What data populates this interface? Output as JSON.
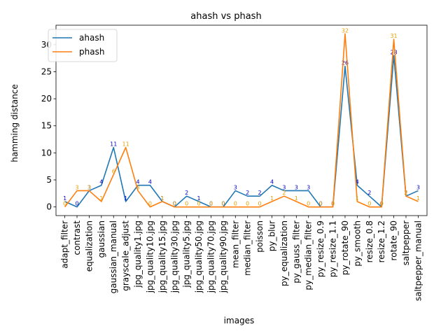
{
  "chart_data": {
    "type": "line",
    "title": "ahash vs phash",
    "xlabel": "images",
    "ylabel": "hamming distance",
    "ylim": [
      -1.6,
      33.6
    ],
    "yticks": [
      0,
      5,
      10,
      15,
      20,
      25,
      30
    ],
    "grid": false,
    "legend_position": "top-left",
    "categories": [
      "adapt_filter",
      "contrast",
      "equalization",
      "gaussian",
      "gaussian_manual",
      "grayscale_adjust",
      "jpg_quality1.jpg",
      "jpg_quality10.jpg",
      "jpg_quality15.jpg",
      "jpg_quality30.jpg",
      "jpg_quality5.jpg",
      "jpg_quality50.jpg",
      "jpg_quality70.jpg",
      "jpg_quality90.jpg",
      "mean_filter",
      "median_filter",
      "poisson",
      "py_blur",
      "py_equalization",
      "py_gauss_filter",
      "py_median_filter",
      "py_resize_0.9",
      "py_resize_1.1",
      "py_rotate_90",
      "py_smooth",
      "resize_0.8",
      "resize_1.2",
      "rotate_90",
      "saltpepper",
      "saltpepper_manual"
    ],
    "series": [
      {
        "name": "ahash",
        "color": "#1f77b4",
        "label_color": "#0000cc",
        "values": [
          1,
          0,
          3,
          4,
          11,
          1,
          4,
          4,
          1,
          0,
          2,
          1,
          0,
          0,
          3,
          2,
          2,
          4,
          3,
          3,
          3,
          0,
          0,
          26,
          4,
          2,
          0,
          28,
          2,
          3
        ]
      },
      {
        "name": "phash",
        "color": "#ff7f0e",
        "label_color": "#e6a000",
        "values": [
          0,
          3,
          3,
          1,
          6,
          11,
          3,
          0,
          1,
          0,
          0,
          0,
          0,
          0,
          0,
          0,
          0,
          1,
          2,
          1,
          0,
          0,
          0,
          32,
          1,
          0,
          0,
          31,
          2,
          1
        ]
      }
    ]
  }
}
